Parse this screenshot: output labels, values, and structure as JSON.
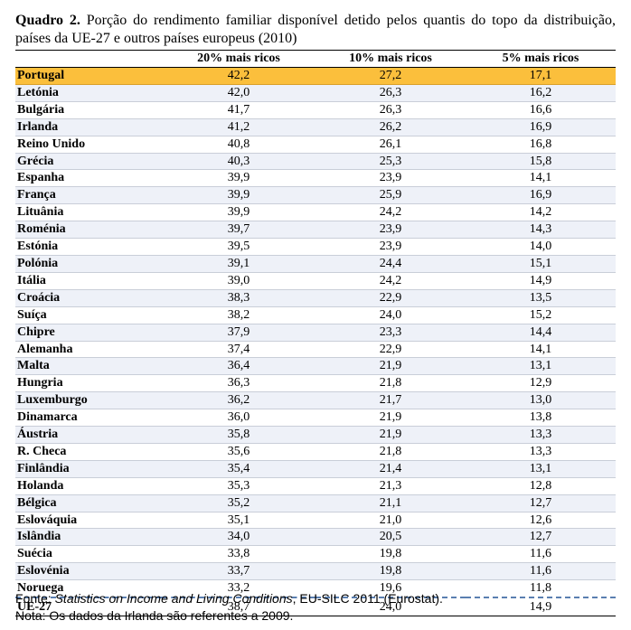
{
  "caption": {
    "label": "Quadro 2.",
    "text": " Porção do rendimento familiar disponível detido pelos quantis do topo da distribuição, países da UE-27 e outros países europeus (2010)"
  },
  "table": {
    "headers": [
      "",
      "20% mais ricos",
      "10% mais ricos",
      "5% mais ricos"
    ],
    "rows": [
      {
        "country": "Portugal",
        "v20": "42,2",
        "v10": "27,2",
        "v5": "17,1"
      },
      {
        "country": "Letónia",
        "v20": "42,0",
        "v10": "26,3",
        "v5": "16,2"
      },
      {
        "country": "Bulgária",
        "v20": "41,7",
        "v10": "26,3",
        "v5": "16,6"
      },
      {
        "country": "Irlanda",
        "v20": "41,2",
        "v10": "26,2",
        "v5": "16,9"
      },
      {
        "country": "Reino Unido",
        "v20": "40,8",
        "v10": "26,1",
        "v5": "16,8"
      },
      {
        "country": "Grécia",
        "v20": "40,3",
        "v10": "25,3",
        "v5": "15,8"
      },
      {
        "country": "Espanha",
        "v20": "39,9",
        "v10": "23,9",
        "v5": "14,1"
      },
      {
        "country": "França",
        "v20": "39,9",
        "v10": "25,9",
        "v5": "16,9"
      },
      {
        "country": "Lituânia",
        "v20": "39,9",
        "v10": "24,2",
        "v5": "14,2"
      },
      {
        "country": "Roménia",
        "v20": "39,7",
        "v10": "23,9",
        "v5": "14,3"
      },
      {
        "country": "Estónia",
        "v20": "39,5",
        "v10": "23,9",
        "v5": "14,0"
      },
      {
        "country": "Polónia",
        "v20": "39,1",
        "v10": "24,4",
        "v5": "15,1"
      },
      {
        "country": "Itália",
        "v20": "39,0",
        "v10": "24,2",
        "v5": "14,9"
      },
      {
        "country": "Croácia",
        "v20": "38,3",
        "v10": "22,9",
        "v5": "13,5"
      },
      {
        "country": "Suíça",
        "v20": "38,2",
        "v10": "24,0",
        "v5": "15,2"
      },
      {
        "country": "Chipre",
        "v20": "37,9",
        "v10": "23,3",
        "v5": "14,4"
      },
      {
        "country": "Alemanha",
        "v20": "37,4",
        "v10": "22,9",
        "v5": "14,1"
      },
      {
        "country": "Malta",
        "v20": "36,4",
        "v10": "21,9",
        "v5": "13,1"
      },
      {
        "country": "Hungria",
        "v20": "36,3",
        "v10": "21,8",
        "v5": "12,9"
      },
      {
        "country": "Luxemburgo",
        "v20": "36,2",
        "v10": "21,7",
        "v5": "13,0"
      },
      {
        "country": "Dinamarca",
        "v20": "36,0",
        "v10": "21,9",
        "v5": "13,8"
      },
      {
        "country": "Áustria",
        "v20": "35,8",
        "v10": "21,9",
        "v5": "13,3"
      },
      {
        "country": "R. Checa",
        "v20": "35,6",
        "v10": "21,8",
        "v5": "13,3"
      },
      {
        "country": "Finlândia",
        "v20": "35,4",
        "v10": "21,4",
        "v5": "13,1"
      },
      {
        "country": "Holanda",
        "v20": "35,3",
        "v10": "21,3",
        "v5": "12,8"
      },
      {
        "country": "Bélgica",
        "v20": "35,2",
        "v10": "21,1",
        "v5": "12,7"
      },
      {
        "country": "Eslováquia",
        "v20": "35,1",
        "v10": "21,0",
        "v5": "12,6"
      },
      {
        "country": "Islândia",
        "v20": "34,0",
        "v10": "20,5",
        "v5": "12,7"
      },
      {
        "country": "Suécia",
        "v20": "33,8",
        "v10": "19,8",
        "v5": "11,6"
      },
      {
        "country": "Eslovénia",
        "v20": "33,7",
        "v10": "19,8",
        "v5": "11,6"
      },
      {
        "country": "Noruega",
        "v20": "33,2",
        "v10": "19,6",
        "v5": "11,8"
      }
    ],
    "total": {
      "country": "UE-27",
      "v20": "38,7",
      "v10": "24,0",
      "v5": "14,9"
    }
  },
  "notes": {
    "source_prefix": "Fonte: ",
    "source_title": "Statistics on Income and Living Conditions",
    "source_suffix": ", EU-SILC 2011 (Eurostat).",
    "note": "Nota: Os dados da Irlanda são referentes a 2009."
  },
  "colors": {
    "highlight": "#fbbf3c",
    "alt_row": "#eef1f8",
    "dashed_rule": "#5a7fb0"
  }
}
